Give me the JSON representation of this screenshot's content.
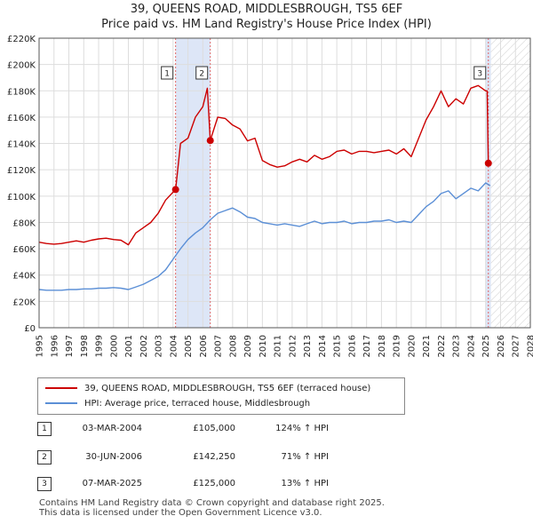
{
  "title_line1": "39, QUEENS ROAD, MIDDLESBROUGH, TS5 6EF",
  "title_line2": "Price paid vs. HM Land Registry's House Price Index (HPI)",
  "legend": {
    "property": "39, QUEENS ROAD, MIDDLESBROUGH, TS5 6EF (terraced house)",
    "hpi": "HPI: Average price, terraced house, Middlesbrough"
  },
  "colors": {
    "property": "#cc0000",
    "hpi": "#5b8fd6",
    "highlight": "#dde6f7",
    "marker_line": "#e06666",
    "grid": "#dddddd"
  },
  "transactions": [
    {
      "num": "1",
      "date": "03-MAR-2004",
      "price": "£105,000",
      "hpi": "124% ↑ HPI"
    },
    {
      "num": "2",
      "date": "30-JUN-2006",
      "price": "£142,250",
      "hpi": "71% ↑ HPI"
    },
    {
      "num": "3",
      "date": "07-MAR-2025",
      "price": "£125,000",
      "hpi": "13% ↑ HPI"
    }
  ],
  "footer_line1": "Contains HM Land Registry data © Crown copyright and database right 2025.",
  "footer_line2": "This data is licensed under the Open Government Licence v3.0.",
  "chart_data": {
    "type": "line",
    "title": "39, QUEENS ROAD, MIDDLESBROUGH, TS5 6EF",
    "subtitle": "Price paid vs. HM Land Registry's House Price Index (HPI)",
    "xlim": [
      1995,
      2028
    ],
    "ylim": [
      0,
      220000
    ],
    "x_ticks": [
      1995,
      1996,
      1997,
      1998,
      1999,
      2000,
      2001,
      2002,
      2003,
      2004,
      2005,
      2006,
      2007,
      2008,
      2009,
      2010,
      2011,
      2012,
      2013,
      2014,
      2015,
      2016,
      2017,
      2018,
      2019,
      2020,
      2021,
      2022,
      2023,
      2024,
      2025,
      2026,
      2027,
      2028
    ],
    "y_ticks": [
      0,
      20000,
      40000,
      60000,
      80000,
      100000,
      120000,
      140000,
      160000,
      180000,
      200000,
      220000
    ],
    "y_tick_labels": [
      "£0",
      "£20K",
      "£40K",
      "£60K",
      "£80K",
      "£100K",
      "£120K",
      "£140K",
      "£160K",
      "£180K",
      "£200K",
      "£220K"
    ],
    "grid": true,
    "highlight_spans": [
      [
        2004.17,
        2006.5
      ],
      [
        2025.0,
        2025.35
      ]
    ],
    "future_hatch_from": 2025.35,
    "sales": [
      {
        "label": "1",
        "x": 2004.17,
        "y": 105000
      },
      {
        "label": "2",
        "x": 2006.5,
        "y": 142250
      },
      {
        "label": "3",
        "x": 2025.18,
        "y": 125000
      }
    ],
    "series": [
      {
        "name": "39, QUEENS ROAD, MIDDLESBROUGH, TS5 6EF (terraced house)",
        "x": [
          1995,
          1995.5,
          1996,
          1996.5,
          1997,
          1997.5,
          1998,
          1998.5,
          1999,
          1999.5,
          2000,
          2000.5,
          2001,
          2001.5,
          2002,
          2002.5,
          2003,
          2003.5,
          2004,
          2004.17,
          2004.5,
          2005,
          2005.5,
          2006,
          2006.3,
          2006.5,
          2007,
          2007.5,
          2008,
          2008.5,
          2009,
          2009.5,
          2010,
          2010.5,
          2011,
          2011.5,
          2012,
          2012.5,
          2013,
          2013.5,
          2014,
          2014.5,
          2015,
          2015.5,
          2016,
          2016.5,
          2017,
          2017.5,
          2018,
          2018.5,
          2019,
          2019.5,
          2020,
          2020.5,
          2021,
          2021.5,
          2022,
          2022.5,
          2023,
          2023.5,
          2024,
          2024.5,
          2025,
          2025.1,
          2025.18,
          2025.3
        ],
        "values": [
          65000,
          64000,
          63500,
          64000,
          65000,
          66000,
          65000,
          66500,
          67500,
          68000,
          67000,
          66500,
          63000,
          72000,
          76000,
          80000,
          87000,
          97000,
          103000,
          105000,
          140000,
          144000,
          160000,
          168000,
          182000,
          142250,
          160000,
          159000,
          154000,
          151000,
          142000,
          144000,
          127000,
          124000,
          122000,
          123000,
          126000,
          128000,
          126000,
          131000,
          128000,
          130000,
          134000,
          135000,
          132000,
          134000,
          134000,
          133000,
          134000,
          135000,
          132000,
          136000,
          130000,
          144000,
          158000,
          168000,
          180000,
          168000,
          174000,
          170000,
          182000,
          184000,
          180000,
          180000,
          125000,
          124000
        ]
      },
      {
        "name": "HPI: Average price, terraced house, Middlesbrough",
        "x": [
          1995,
          1995.5,
          1996,
          1996.5,
          1997,
          1997.5,
          1998,
          1998.5,
          1999,
          1999.5,
          2000,
          2000.5,
          2001,
          2001.5,
          2002,
          2002.5,
          2003,
          2003.5,
          2004,
          2004.5,
          2005,
          2005.5,
          2006,
          2006.5,
          2007,
          2007.5,
          2008,
          2008.5,
          2009,
          2009.5,
          2010,
          2010.5,
          2011,
          2011.5,
          2012,
          2012.5,
          2013,
          2013.5,
          2014,
          2014.5,
          2015,
          2015.5,
          2016,
          2016.5,
          2017,
          2017.5,
          2018,
          2018.5,
          2019,
          2019.5,
          2020,
          2020.5,
          2021,
          2021.5,
          2022,
          2022.5,
          2023,
          2023.5,
          2024,
          2024.5,
          2025,
          2025.3
        ],
        "values": [
          29000,
          28500,
          28500,
          28500,
          29000,
          29000,
          29500,
          29500,
          30000,
          30000,
          30500,
          30000,
          29000,
          31000,
          33000,
          36000,
          39000,
          44000,
          52000,
          60000,
          67000,
          72000,
          76000,
          82000,
          87000,
          89000,
          91000,
          88000,
          84000,
          83000,
          80000,
          79000,
          78000,
          79000,
          78000,
          77000,
          79000,
          81000,
          79000,
          80000,
          80000,
          81000,
          79000,
          80000,
          80000,
          81000,
          81000,
          82000,
          80000,
          81000,
          80000,
          86000,
          92000,
          96000,
          102000,
          104000,
          98000,
          102000,
          106000,
          104000,
          110000,
          108000
        ]
      }
    ]
  }
}
